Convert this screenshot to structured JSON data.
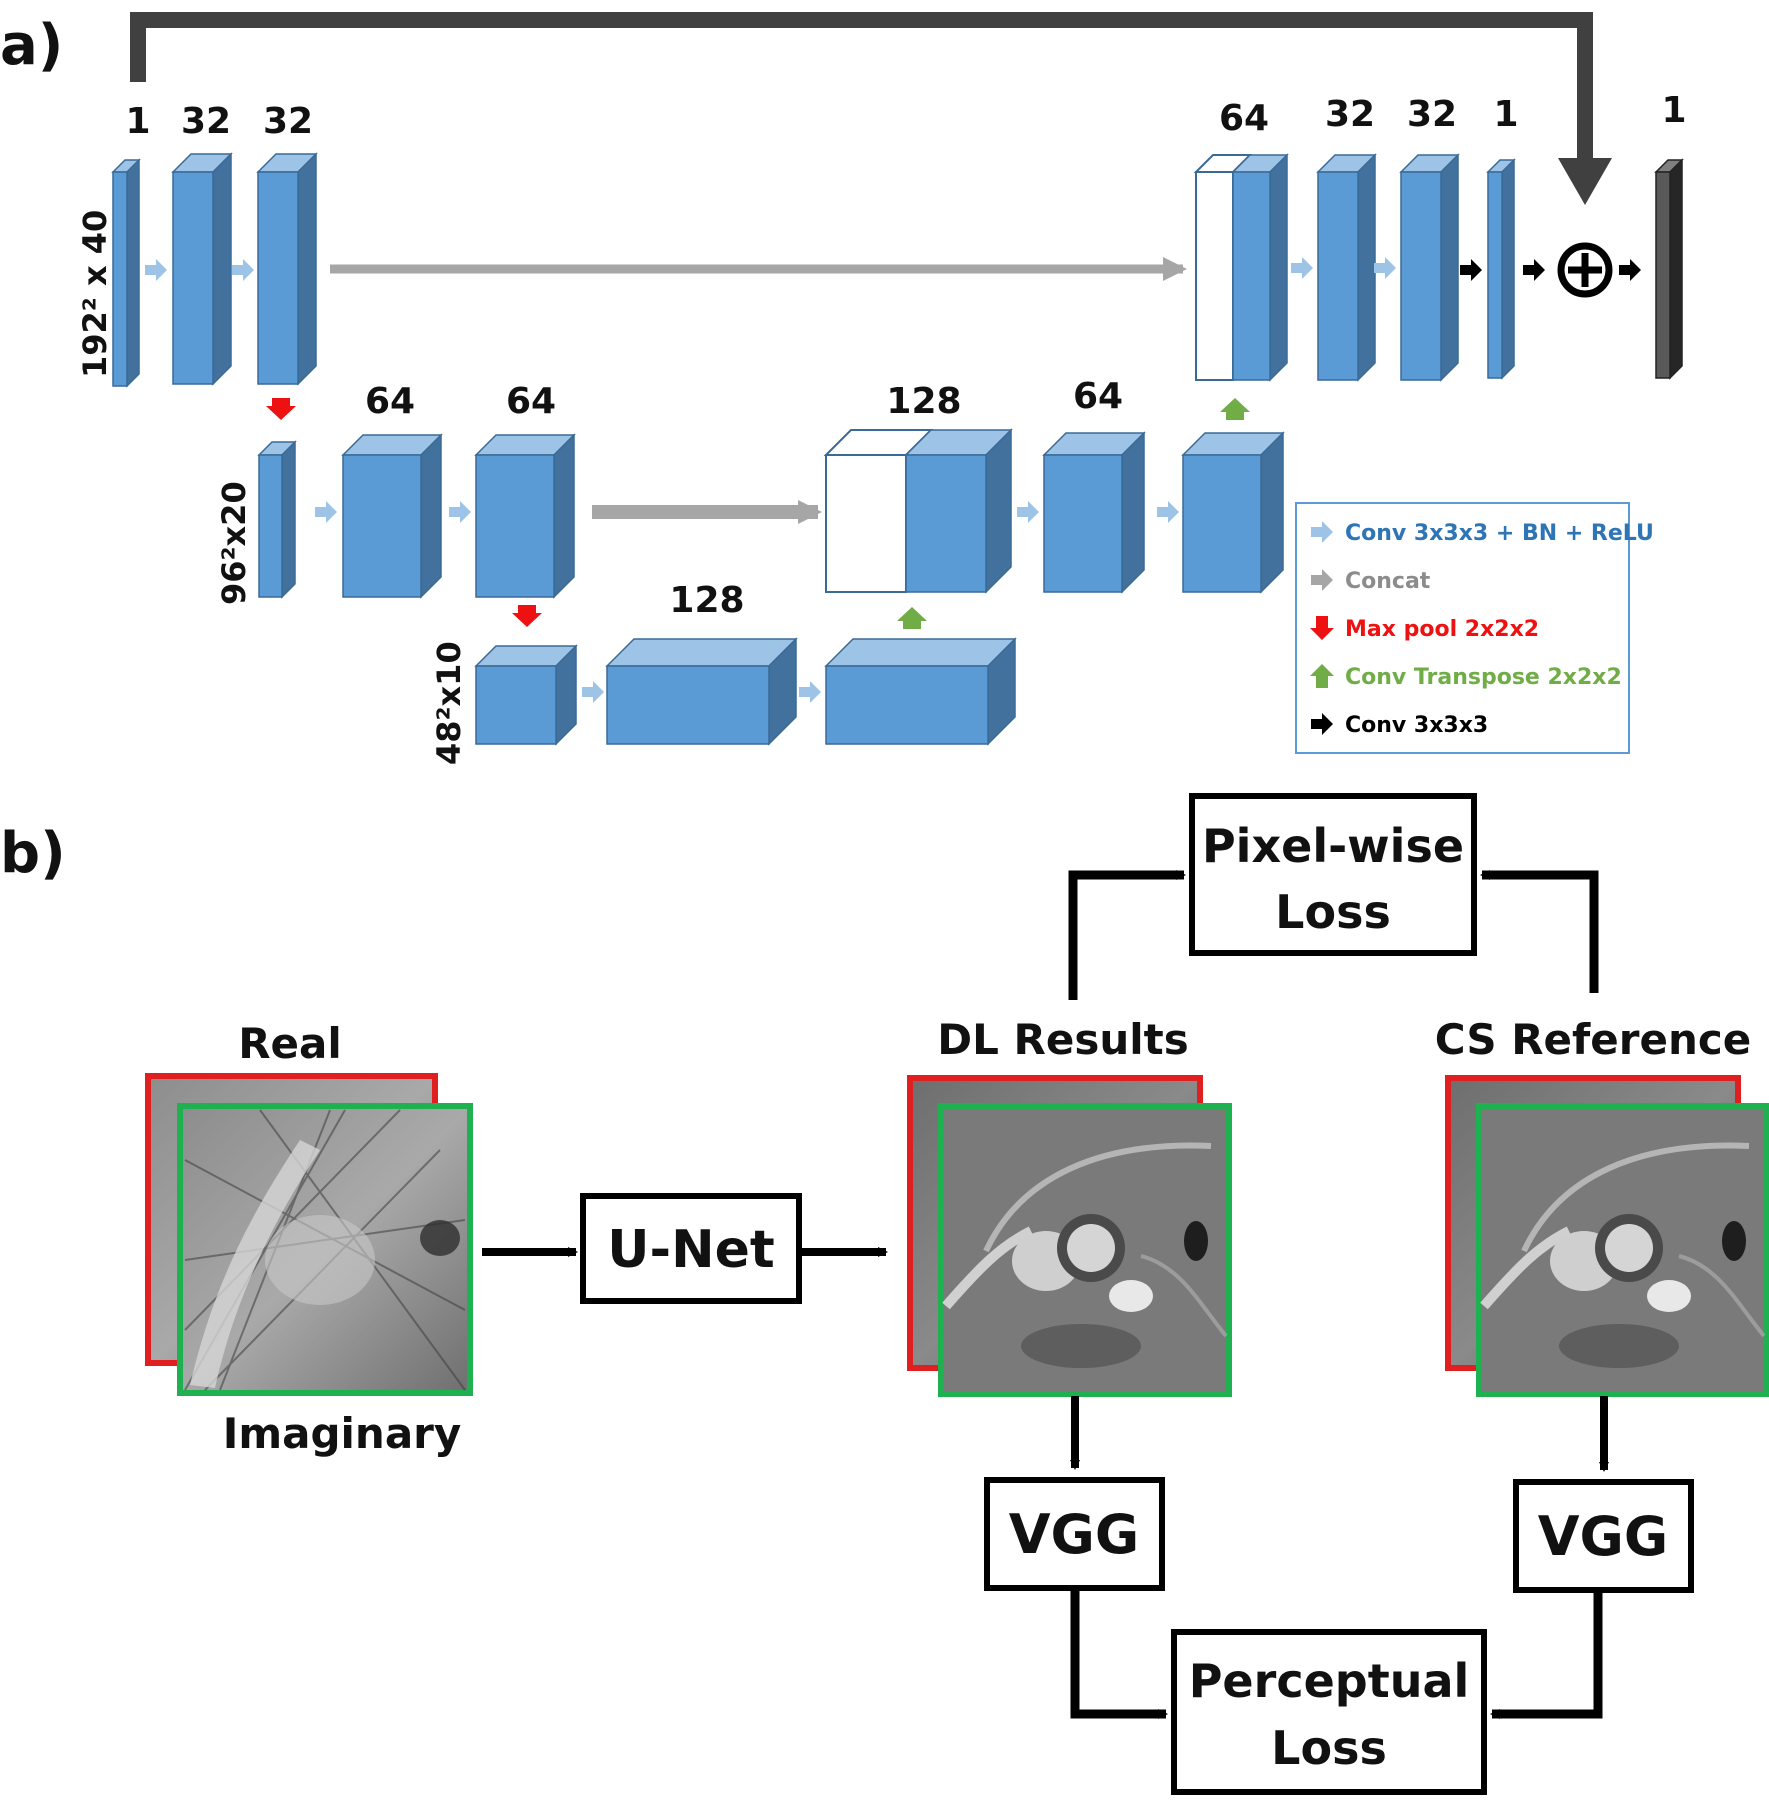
{
  "panels": {
    "a": {
      "label": "a)",
      "channels": {
        "enc1_in": "1",
        "enc1_c1": "32",
        "enc1_c2": "32",
        "enc2_c1": "64",
        "enc2_c2": "64",
        "bottleneck": "128",
        "dec2_concat": "128",
        "dec2_c1": "64",
        "dec1_concat": "64",
        "dec1_c1": "32",
        "dec1_c2": "32",
        "dec1_out": "1",
        "output": "1"
      },
      "sizes": {
        "level1": "192² x 40",
        "level2": "96²x20",
        "level3": "48²x10"
      },
      "legend": [
        {
          "label": "Conv 3x3x3 + BN + ReLU",
          "color": "#2e75b6",
          "arrow_color": "#9dc3e6",
          "icon": "right-arrow-icon"
        },
        {
          "label": "Concat",
          "color": "#8c8c8c",
          "arrow_color": "#a6a6a6",
          "icon": "right-arrow-icon"
        },
        {
          "label": "Max pool 2x2x2",
          "color": "#ee1111",
          "arrow_color": "#ee1111",
          "icon": "down-arrow-icon"
        },
        {
          "label": "Conv Transpose 2x2x2",
          "color": "#70ad47",
          "arrow_color": "#70ad47",
          "icon": "up-arrow-icon"
        },
        {
          "label": "Conv 3x3x3",
          "color": "#000000",
          "arrow_color": "#000000",
          "icon": "right-arrow-icon"
        }
      ],
      "colors": {
        "block_face": "#5b9bd5",
        "block_top": "#9dc3e6",
        "block_side": "#41719c",
        "output_block": "#595959"
      }
    },
    "b": {
      "label": "b)",
      "input_labels": {
        "top": "Real",
        "bottom": "Imaginary"
      },
      "unet_label": "U-Net",
      "dl_label": "DL Results",
      "cs_label": "CS Reference",
      "pixel_loss": [
        "Pixel-wise",
        "Loss"
      ],
      "vgg_label": "VGG",
      "perceptual_loss": [
        "Perceptual",
        "Loss"
      ],
      "colors": {
        "real_frame": "#e02020",
        "imag_frame": "#1fb050"
      }
    }
  }
}
